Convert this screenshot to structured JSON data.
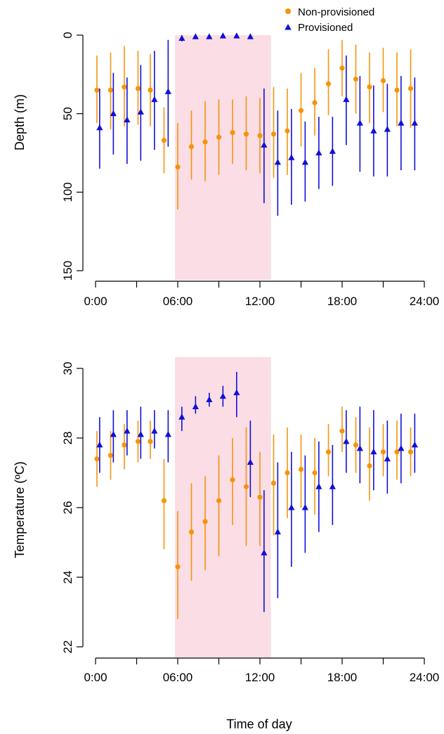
{
  "chart_data": [
    {
      "type": "scatter",
      "panel": "depth",
      "title": "",
      "xlabel": "",
      "ylabel": "Depth (m)",
      "y_reversed": true,
      "xlim": [
        0,
        24
      ],
      "ylim": [
        0,
        150
      ],
      "x_ticks": [
        "0:00",
        "06:00",
        "12:00",
        "18:00",
        "24:00"
      ],
      "y_ticks": [
        "0",
        "50",
        "100",
        "150"
      ],
      "shaded_region": {
        "from": 5.8,
        "to": 12.8,
        "color": "#fbdde5"
      },
      "legend": {
        "position": "top-right"
      },
      "series": [
        {
          "name": "Non-provisioned",
          "color": "#f5940c",
          "marker": "circle",
          "points": [
            {
              "x": 0.1,
              "y": 35,
              "low": 13,
              "high": 56
            },
            {
              "x": 1.1,
              "y": 35,
              "low": 11,
              "high": 60
            },
            {
              "x": 2.1,
              "y": 33,
              "low": 7,
              "high": 58
            },
            {
              "x": 3.1,
              "y": 34,
              "low": 10,
              "high": 57
            },
            {
              "x": 4.0,
              "y": 35,
              "low": 12,
              "high": 58
            },
            {
              "x": 5.0,
              "y": 67,
              "low": 46,
              "high": 88
            },
            {
              "x": 6.0,
              "y": 84,
              "low": 56,
              "high": 111
            },
            {
              "x": 7.0,
              "y": 71,
              "low": 48,
              "high": 92
            },
            {
              "x": 8.0,
              "y": 68,
              "low": 42,
              "high": 93
            },
            {
              "x": 9.0,
              "y": 65,
              "low": 41,
              "high": 89
            },
            {
              "x": 10.0,
              "y": 62,
              "low": 41,
              "high": 82
            },
            {
              "x": 11.0,
              "y": 63,
              "low": 39,
              "high": 86
            },
            {
              "x": 12.0,
              "y": 64,
              "low": 40,
              "high": 88
            },
            {
              "x": 13.0,
              "y": 63,
              "low": 33,
              "high": 91
            },
            {
              "x": 14.0,
              "y": 61,
              "low": 34,
              "high": 89
            },
            {
              "x": 15.0,
              "y": 48,
              "low": 24,
              "high": 71
            },
            {
              "x": 16.0,
              "y": 43,
              "low": 21,
              "high": 64
            },
            {
              "x": 17.0,
              "y": 31,
              "low": 9,
              "high": 51
            },
            {
              "x": 18.0,
              "y": 21,
              "low": 3,
              "high": 39
            },
            {
              "x": 19.0,
              "y": 28,
              "low": 6,
              "high": 50
            },
            {
              "x": 20.0,
              "y": 33,
              "low": 11,
              "high": 56
            },
            {
              "x": 21.0,
              "y": 29,
              "low": 8,
              "high": 49
            },
            {
              "x": 22.0,
              "y": 35,
              "low": 11,
              "high": 58
            },
            {
              "x": 23.0,
              "y": 34,
              "low": 9,
              "high": 59
            }
          ]
        },
        {
          "name": "Provisioned",
          "color": "#1010d8",
          "marker": "triangle",
          "points": [
            {
              "x": 0.3,
              "y": 59,
              "low": 34,
              "high": 85
            },
            {
              "x": 1.3,
              "y": 50,
              "low": 24,
              "high": 76
            },
            {
              "x": 2.3,
              "y": 54,
              "low": 27,
              "high": 82
            },
            {
              "x": 3.3,
              "y": 49,
              "low": 19,
              "high": 80
            },
            {
              "x": 4.3,
              "y": 41,
              "low": 10,
              "high": 73
            },
            {
              "x": 5.3,
              "y": 36,
              "low": 3,
              "high": 71
            },
            {
              "x": 6.3,
              "y": 2,
              "low": 0,
              "high": 4
            },
            {
              "x": 7.3,
              "y": 1,
              "low": 0,
              "high": 2
            },
            {
              "x": 8.3,
              "y": 1,
              "low": 0,
              "high": 2
            },
            {
              "x": 9.3,
              "y": 0.5,
              "low": 0,
              "high": 1
            },
            {
              "x": 10.3,
              "y": 0.5,
              "low": 0,
              "high": 1
            },
            {
              "x": 11.3,
              "y": 1,
              "low": 0,
              "high": 2
            },
            {
              "x": 12.3,
              "y": 70,
              "low": 34,
              "high": 107
            },
            {
              "x": 13.3,
              "y": 81,
              "low": 48,
              "high": 115
            },
            {
              "x": 14.3,
              "y": 78,
              "low": 47,
              "high": 108
            },
            {
              "x": 15.3,
              "y": 81,
              "low": 55,
              "high": 106
            },
            {
              "x": 16.3,
              "y": 75,
              "low": 52,
              "high": 98
            },
            {
              "x": 17.3,
              "y": 74,
              "low": 52,
              "high": 96
            },
            {
              "x": 18.3,
              "y": 41,
              "low": 13,
              "high": 70
            },
            {
              "x": 19.3,
              "y": 56,
              "low": 26,
              "high": 87
            },
            {
              "x": 20.3,
              "y": 61,
              "low": 32,
              "high": 90
            },
            {
              "x": 21.3,
              "y": 60,
              "low": 31,
              "high": 90
            },
            {
              "x": 22.3,
              "y": 56,
              "low": 26,
              "high": 86
            },
            {
              "x": 23.3,
              "y": 56,
              "low": 27,
              "high": 86
            }
          ]
        }
      ]
    },
    {
      "type": "scatter",
      "panel": "temperature",
      "title": "",
      "xlabel": "Time of day",
      "ylabel": "Temperature (ºC)",
      "y_reversed": false,
      "xlim": [
        0,
        24
      ],
      "ylim": [
        22,
        30
      ],
      "x_ticks": [
        "0:00",
        "06:00",
        "12:00",
        "18:00",
        "24:00"
      ],
      "y_ticks": [
        "22",
        "24",
        "26",
        "28",
        "30"
      ],
      "shaded_region": {
        "from": 5.8,
        "to": 12.8,
        "color": "#fbdde5"
      },
      "series": [
        {
          "name": "Non-provisioned",
          "color": "#f5940c",
          "marker": "circle",
          "points": [
            {
              "x": 0.1,
              "y": 27.4,
              "low": 26.6,
              "high": 28.2
            },
            {
              "x": 1.1,
              "y": 27.5,
              "low": 26.8,
              "high": 28.2
            },
            {
              "x": 2.1,
              "y": 27.8,
              "low": 27.1,
              "high": 28.4
            },
            {
              "x": 3.1,
              "y": 27.9,
              "low": 27.3,
              "high": 28.5
            },
            {
              "x": 4.0,
              "y": 27.9,
              "low": 27.4,
              "high": 28.5
            },
            {
              "x": 5.0,
              "y": 26.2,
              "low": 24.8,
              "high": 27.4
            },
            {
              "x": 6.0,
              "y": 24.3,
              "low": 22.8,
              "high": 25.9
            },
            {
              "x": 7.0,
              "y": 25.3,
              "low": 23.9,
              "high": 26.7
            },
            {
              "x": 8.0,
              "y": 25.6,
              "low": 24.2,
              "high": 26.9
            },
            {
              "x": 9.0,
              "y": 26.2,
              "low": 24.6,
              "high": 27.5
            },
            {
              "x": 10.0,
              "y": 26.8,
              "low": 25.5,
              "high": 28.0
            },
            {
              "x": 11.0,
              "y": 26.6,
              "low": 24.9,
              "high": 28.3
            },
            {
              "x": 12.0,
              "y": 26.3,
              "low": 24.9,
              "high": 27.6
            },
            {
              "x": 13.0,
              "y": 26.7,
              "low": 25.2,
              "high": 28.1
            },
            {
              "x": 14.0,
              "y": 27.0,
              "low": 25.7,
              "high": 28.3
            },
            {
              "x": 15.0,
              "y": 27.1,
              "low": 26.0,
              "high": 28.1
            },
            {
              "x": 16.0,
              "y": 27.0,
              "low": 25.8,
              "high": 28.0
            },
            {
              "x": 17.0,
              "y": 27.6,
              "low": 26.9,
              "high": 28.4
            },
            {
              "x": 18.0,
              "y": 28.2,
              "low": 27.6,
              "high": 28.9
            },
            {
              "x": 19.0,
              "y": 27.8,
              "low": 27.0,
              "high": 28.6
            },
            {
              "x": 20.0,
              "y": 27.2,
              "low": 26.2,
              "high": 28.3
            },
            {
              "x": 21.0,
              "y": 27.6,
              "low": 26.9,
              "high": 28.4
            },
            {
              "x": 22.0,
              "y": 27.6,
              "low": 26.8,
              "high": 28.5
            },
            {
              "x": 23.0,
              "y": 27.6,
              "low": 26.9,
              "high": 28.3
            }
          ]
        },
        {
          "name": "Provisioned",
          "color": "#1010d8",
          "marker": "triangle",
          "points": [
            {
              "x": 0.3,
              "y": 27.8,
              "low": 27.0,
              "high": 28.6
            },
            {
              "x": 1.3,
              "y": 28.1,
              "low": 27.3,
              "high": 28.8
            },
            {
              "x": 2.3,
              "y": 28.2,
              "low": 27.5,
              "high": 28.8
            },
            {
              "x": 3.3,
              "y": 28.1,
              "low": 27.4,
              "high": 28.9
            },
            {
              "x": 4.3,
              "y": 28.2,
              "low": 27.7,
              "high": 28.8
            },
            {
              "x": 5.3,
              "y": 28.1,
              "low": 27.3,
              "high": 28.8
            },
            {
              "x": 6.3,
              "y": 28.6,
              "low": 28.2,
              "high": 28.9
            },
            {
              "x": 7.3,
              "y": 28.9,
              "low": 28.7,
              "high": 29.2
            },
            {
              "x": 8.3,
              "y": 29.1,
              "low": 28.9,
              "high": 29.3
            },
            {
              "x": 9.3,
              "y": 29.2,
              "low": 28.9,
              "high": 29.5
            },
            {
              "x": 10.3,
              "y": 29.3,
              "low": 28.6,
              "high": 29.9
            },
            {
              "x": 11.3,
              "y": 27.3,
              "low": 26.3,
              "high": 28.5
            },
            {
              "x": 12.3,
              "y": 24.7,
              "low": 23.0,
              "high": 26.5
            },
            {
              "x": 13.3,
              "y": 25.3,
              "low": 23.4,
              "high": 27.3
            },
            {
              "x": 14.3,
              "y": 26.0,
              "low": 24.3,
              "high": 27.6
            },
            {
              "x": 15.3,
              "y": 26.0,
              "low": 24.7,
              "high": 27.5
            },
            {
              "x": 16.3,
              "y": 26.6,
              "low": 25.3,
              "high": 27.9
            },
            {
              "x": 17.3,
              "y": 26.6,
              "low": 25.5,
              "high": 27.8
            },
            {
              "x": 18.3,
              "y": 27.9,
              "low": 27.0,
              "high": 28.8
            },
            {
              "x": 19.3,
              "y": 27.7,
              "low": 26.7,
              "high": 28.9
            },
            {
              "x": 20.3,
              "y": 27.6,
              "low": 26.5,
              "high": 28.8
            },
            {
              "x": 21.3,
              "y": 27.4,
              "low": 26.4,
              "high": 28.5
            },
            {
              "x": 22.3,
              "y": 27.7,
              "low": 26.7,
              "high": 28.7
            },
            {
              "x": 23.3,
              "y": 27.8,
              "low": 27.0,
              "high": 28.7
            }
          ]
        }
      ]
    }
  ]
}
